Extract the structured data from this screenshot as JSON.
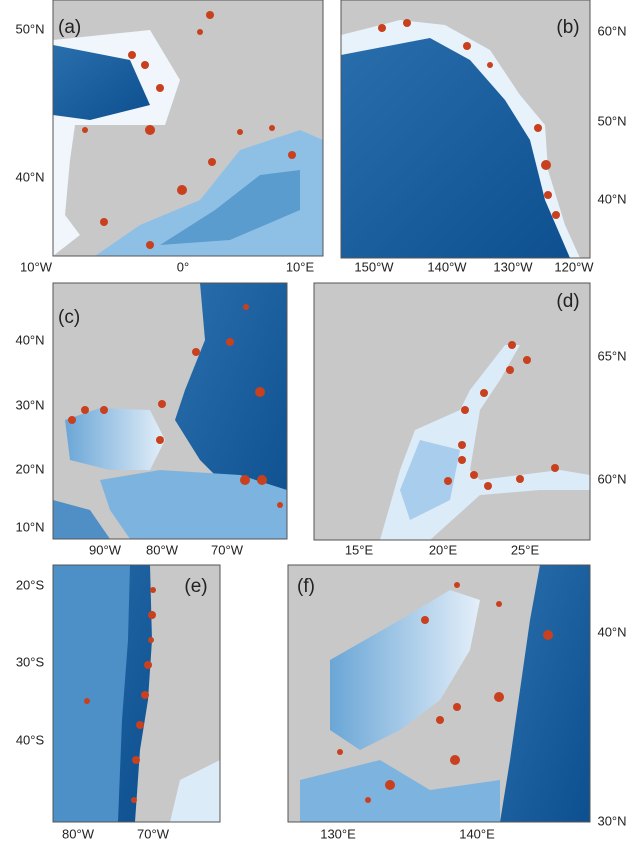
{
  "panels": [
    {
      "label": "(a)",
      "xticks": [
        "10°W",
        "0°",
        "10°E"
      ],
      "yticks": [
        "50°N",
        "40°N"
      ]
    },
    {
      "label": "(b)",
      "xticks": [
        "150°W",
        "140°W",
        "130°W",
        "120°W"
      ],
      "yticks": [
        "60°N",
        "50°N",
        "40°N"
      ]
    },
    {
      "label": "(c)",
      "xticks": [
        "90°W",
        "80°W",
        "70°W"
      ],
      "yticks": [
        "40°N",
        "30°N",
        "20°N",
        "10°N"
      ]
    },
    {
      "label": "(d)",
      "xticks": [
        "15°E",
        "20°E",
        "25°E"
      ],
      "yticks": [
        "65°N",
        "60°N"
      ]
    },
    {
      "label": "(e)",
      "xticks": [
        "80°W",
        "70°W"
      ],
      "yticks": [
        "20°S",
        "30°S",
        "40°S"
      ]
    },
    {
      "label": "(f)",
      "xticks": [
        "130°E",
        "140°E"
      ],
      "yticks": [
        "40°N",
        "30°N"
      ]
    }
  ]
}
